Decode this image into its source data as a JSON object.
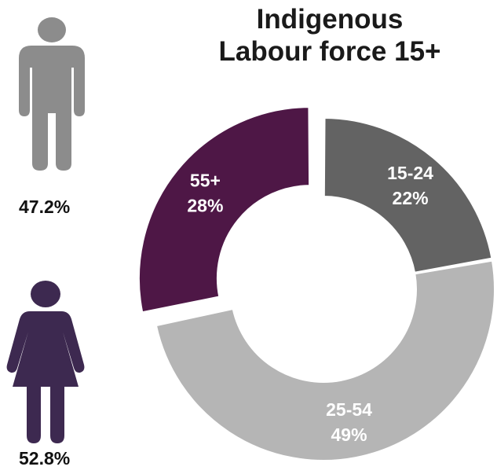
{
  "title_line1": "Indigenous",
  "title_line2": "Labour force 15+",
  "gender": {
    "male": {
      "icon": "male-person-icon",
      "percent_label": "47.2%",
      "value": 47.2,
      "color": "#8c8c8c"
    },
    "female": {
      "icon": "female-person-icon",
      "percent_label": "52.8%",
      "value": 52.8,
      "color": "#3d2950"
    }
  },
  "chart_data": {
    "type": "pie",
    "donut": true,
    "title": "Indigenous Labour force 15+",
    "categories": [
      "15-24",
      "25-54",
      "55+"
    ],
    "values": [
      22,
      49,
      28
    ],
    "labels": [
      "22%",
      "49%",
      "28%"
    ],
    "colors": [
      "#636363",
      "#b5b5b5",
      "#4e1746"
    ],
    "exploded": "55+"
  }
}
